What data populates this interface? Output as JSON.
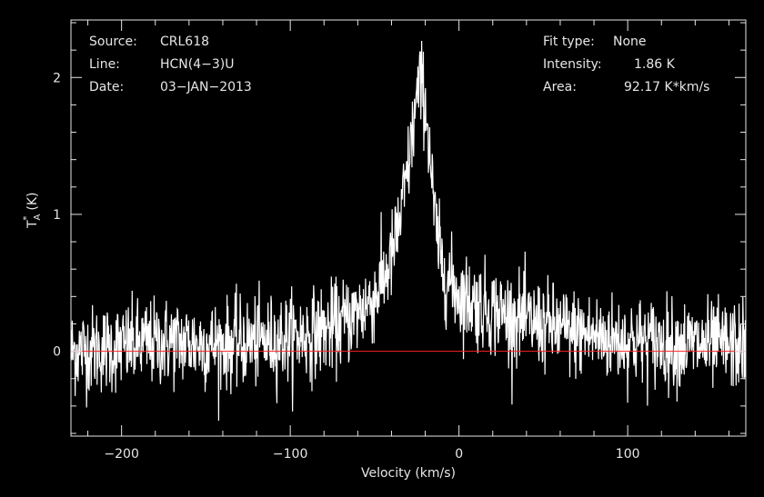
{
  "header": {
    "source_label": "Source:",
    "source_value": "CRL618",
    "line_label": "Line:",
    "line_value": "HCN(4−3)U",
    "date_label": "Date:",
    "date_value": "03−JAN−2013",
    "fit_label": "Fit type:",
    "fit_value": "None",
    "intensity_label": "Intensity:",
    "intensity_value": "1.86 K",
    "area_label": "Area:",
    "area_value": "92.17 K*km/s"
  },
  "colors": {
    "background": "#000000",
    "foreground": "#ffffff",
    "baseline": "#ff2020"
  },
  "chart_data": {
    "type": "line",
    "xlabel": "Velocity (km/s)",
    "ylabel_main": "T",
    "ylabel_sub": "A",
    "ylabel_sup": "*",
    "ylabel_unit": "(K)",
    "xlim": [
      -230,
      170
    ],
    "ylim": [
      -0.62,
      2.42
    ],
    "x_ticks": [
      -200,
      -100,
      0,
      100
    ],
    "x_tick_labels": [
      "−200",
      "−100",
      "0",
      "100"
    ],
    "y_ticks": [
      0,
      1,
      2
    ],
    "y_tick_labels": [
      "0",
      "1",
      "2"
    ],
    "baseline_value": 0,
    "series": [
      {
        "x": [
          -230,
          -220,
          -210,
          -200,
          -190,
          -180,
          -170,
          -160,
          -150,
          -140,
          -130,
          -120,
          -110,
          -100,
          -90,
          -80,
          -70,
          -60,
          -50,
          -45,
          -40,
          -35,
          -30,
          -27,
          -25,
          -23,
          -21,
          -19,
          -17,
          -15,
          -12,
          -10,
          -5,
          0,
          5,
          10,
          20,
          30,
          40,
          50,
          60,
          70,
          80,
          90,
          100,
          110,
          120,
          130,
          140,
          150,
          160,
          170
        ],
        "values": [
          0.0,
          0.01,
          0.02,
          0.03,
          0.05,
          0.06,
          0.07,
          0.06,
          0.05,
          0.05,
          0.06,
          0.07,
          0.08,
          0.1,
          0.12,
          0.15,
          0.2,
          0.28,
          0.4,
          0.52,
          0.68,
          0.95,
          1.35,
          1.65,
          1.85,
          1.95,
          1.9,
          1.7,
          1.4,
          1.05,
          0.75,
          0.62,
          0.5,
          0.42,
          0.38,
          0.35,
          0.3,
          0.26,
          0.22,
          0.19,
          0.16,
          0.13,
          0.11,
          0.09,
          0.08,
          0.07,
          0.06,
          0.05,
          0.05,
          0.04,
          0.04,
          0.04
        ]
      }
    ],
    "noise_rms": 0.16
  }
}
